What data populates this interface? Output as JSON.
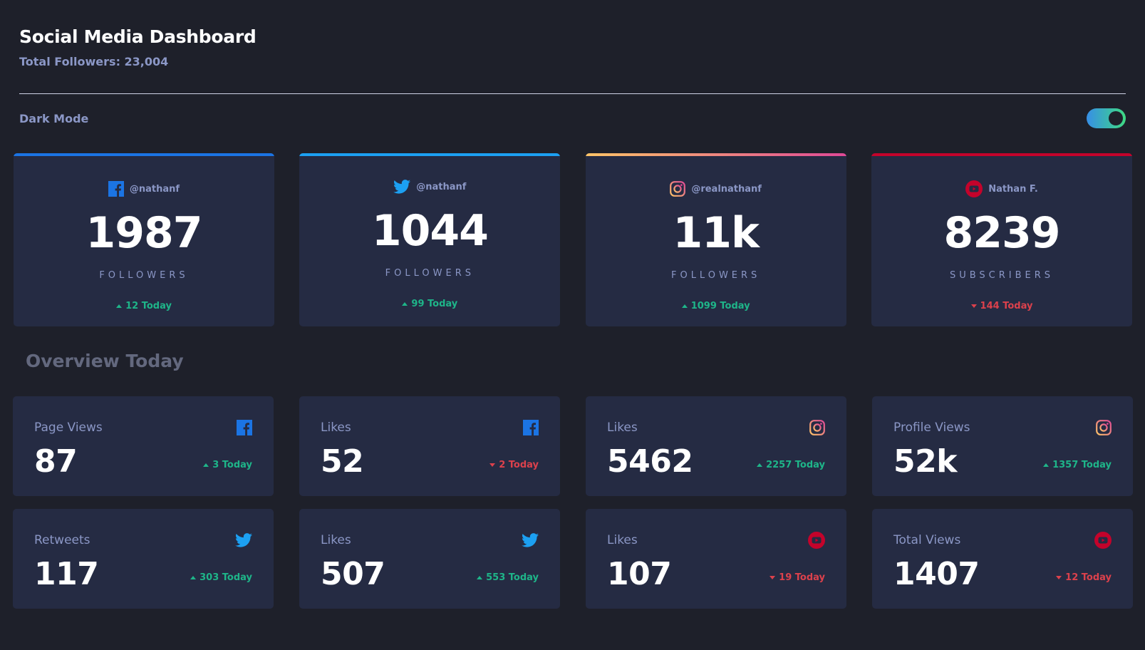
{
  "header": {
    "title": "Social Media Dashboard",
    "subtitle": "Total Followers: 23,004"
  },
  "mode": {
    "label": "Dark Mode",
    "enabled": true
  },
  "colors": {
    "background": "#1e202a",
    "card": "#252b43",
    "muted_text": "#8b97c6",
    "up": "#1eb589",
    "down": "#dc414c",
    "facebook": "#1b74e4",
    "twitter": "#1ca0f2",
    "instagram_start": "#fdc468",
    "instagram_end": "#df4996",
    "youtube": "#c4032b"
  },
  "followers": [
    {
      "platform": "facebook",
      "icon": "facebook-icon",
      "handle": "@nathanf",
      "count": "1987",
      "label": "FOLLOWERS",
      "today": "12 Today",
      "trend": "up"
    },
    {
      "platform": "twitter",
      "icon": "twitter-icon",
      "handle": "@nathanf",
      "count": "1044",
      "label": "FOLLOWERS",
      "today": "99 Today",
      "trend": "up"
    },
    {
      "platform": "instagram",
      "icon": "instagram-icon",
      "handle": "@realnathanf",
      "count": "11k",
      "label": "FOLLOWERS",
      "today": "1099 Today",
      "trend": "up"
    },
    {
      "platform": "youtube",
      "icon": "youtube-icon",
      "handle": "Nathan F.",
      "count": "8239",
      "label": "SUBSCRIBERS",
      "today": "144 Today",
      "trend": "down"
    }
  ],
  "overview": {
    "title": "Overview Today",
    "items": [
      {
        "label": "Page Views",
        "icon": "facebook-icon",
        "value": "87",
        "change": "3 Today",
        "trend": "up"
      },
      {
        "label": "Likes",
        "icon": "facebook-icon",
        "value": "52",
        "change": "2 Today",
        "trend": "down"
      },
      {
        "label": "Likes",
        "icon": "instagram-icon",
        "value": "5462",
        "change": "2257 Today",
        "trend": "up"
      },
      {
        "label": "Profile Views",
        "icon": "instagram-icon",
        "value": "52k",
        "change": "1357 Today",
        "trend": "up"
      },
      {
        "label": "Retweets",
        "icon": "twitter-icon",
        "value": "117",
        "change": "303 Today",
        "trend": "up"
      },
      {
        "label": "Likes",
        "icon": "twitter-icon",
        "value": "507",
        "change": "553 Today",
        "trend": "up"
      },
      {
        "label": "Likes",
        "icon": "youtube-icon",
        "value": "107",
        "change": "19 Today",
        "trend": "down"
      },
      {
        "label": "Total Views",
        "icon": "youtube-icon",
        "value": "1407",
        "change": "12 Today",
        "trend": "down"
      }
    ]
  }
}
